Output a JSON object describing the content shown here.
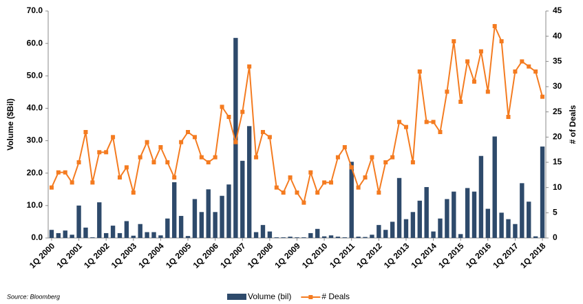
{
  "chart_data": {
    "type": "bar-line",
    "categories": [
      "1Q 2000",
      null,
      null,
      null,
      "1Q 2001",
      null,
      null,
      null,
      "1Q 2002",
      null,
      null,
      null,
      "1Q 2003",
      null,
      null,
      null,
      "1Q 2004",
      null,
      null,
      null,
      "1Q 2005",
      null,
      null,
      null,
      "1Q 2006",
      null,
      null,
      null,
      "1Q 2007",
      null,
      null,
      null,
      "1Q 2008",
      null,
      null,
      null,
      "1Q 2009",
      null,
      null,
      null,
      "1Q 2010",
      null,
      null,
      null,
      "1Q 2011",
      null,
      null,
      null,
      "1Q 2012",
      null,
      null,
      null,
      "1Q 2013",
      null,
      null,
      null,
      "1Q 2014",
      null,
      null,
      null,
      "1Q 2015",
      null,
      null,
      null,
      "1Q 2016",
      null,
      null,
      null,
      "1Q 2017",
      null,
      null,
      null,
      "1Q 2018"
    ],
    "series": [
      {
        "name": "Volume (bil)",
        "type": "bar",
        "color": "#2e4a6b",
        "axis": "y",
        "values": [
          2.5,
          1.5,
          2.3,
          1.0,
          10.0,
          3.2,
          0.2,
          11.0,
          1.5,
          3.8,
          1.5,
          5.2,
          0.7,
          4.3,
          1.8,
          1.8,
          0.8,
          6.0,
          17.2,
          6.8,
          0.6,
          12.0,
          8.0,
          15.0,
          8.0,
          13.0,
          16.5,
          61.7,
          23.8,
          34.5,
          1.8,
          4.0,
          2.0,
          0.2,
          0.2,
          0.4,
          0.2,
          0.2,
          1.5,
          2.8,
          0.5,
          0.8,
          0.4,
          0.2,
          23.5,
          0.4,
          0.3,
          1.0,
          4.0,
          2.5,
          5.0,
          18.5,
          5.8,
          8.0,
          11.5,
          15.7,
          2.0,
          6.0,
          12.0,
          14.3,
          1.2,
          15.4,
          14.3,
          25.3,
          9.0,
          31.3,
          7.8,
          5.8,
          4.3,
          16.9,
          11.2,
          0.5,
          28.2
        ]
      },
      {
        "name": "# Deals",
        "type": "line",
        "color": "#f47b20",
        "axis": "y2",
        "values": [
          10,
          13,
          13,
          11,
          15,
          21,
          11,
          17,
          17,
          20,
          12,
          14,
          9,
          16,
          19,
          15,
          18,
          15,
          12,
          19,
          21,
          20,
          16,
          15,
          16,
          26,
          24,
          19,
          25,
          34,
          16,
          21,
          20,
          10,
          9,
          12,
          9,
          7,
          13,
          9,
          11,
          11,
          16,
          18,
          14,
          10,
          12,
          16,
          9,
          15,
          16,
          23,
          22,
          15,
          33,
          23,
          23,
          21,
          29,
          39,
          27,
          35,
          31,
          37,
          29,
          42,
          39,
          24,
          33,
          35,
          34,
          33,
          28
        ]
      }
    ],
    "ylabel": "Volume ($Bil)",
    "y2label": "# of Deals",
    "ylim": [
      0,
      70
    ],
    "yticks": [
      {
        "value": 0,
        "label": "0.0"
      },
      {
        "value": 10,
        "label": "10.0"
      },
      {
        "value": 20,
        "label": "20.0"
      },
      {
        "value": 30,
        "label": "30.0"
      },
      {
        "value": 40,
        "label": "40.0"
      },
      {
        "value": 50,
        "label": "50.0"
      },
      {
        "value": 60,
        "label": "60.0"
      },
      {
        "value": 70,
        "label": "70.0"
      }
    ],
    "y2lim": [
      0,
      45
    ],
    "y2ticks": [
      0,
      5,
      10,
      15,
      20,
      25,
      30,
      35,
      40,
      45
    ],
    "source": "Source:  Bloomberg",
    "grid": false
  }
}
